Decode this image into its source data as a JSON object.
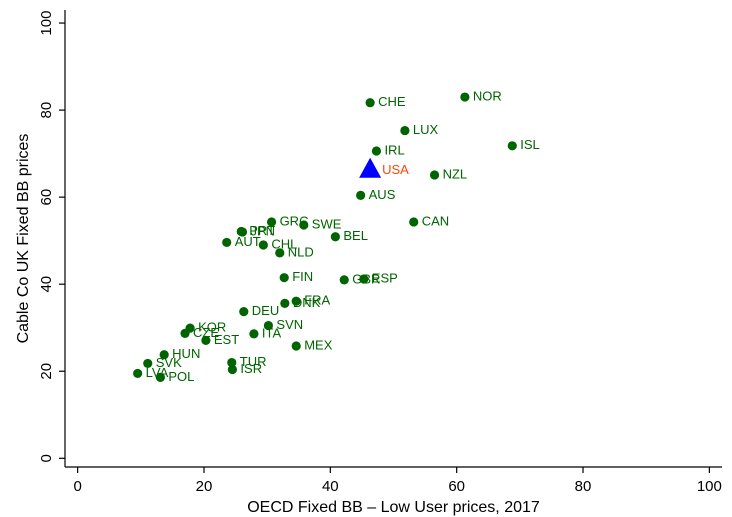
{
  "chart_data": {
    "type": "scatter",
    "xlabel": "OECD Fixed BB – Low User prices, 2017",
    "ylabel": "Cable Co UK Fixed BB prices",
    "xlim": [
      -2,
      102
    ],
    "ylim": [
      -2,
      103
    ],
    "xticks": [
      0,
      20,
      40,
      60,
      80,
      100
    ],
    "yticks": [
      0,
      20,
      40,
      60,
      80,
      100
    ],
    "grid": false,
    "colors": {
      "point": "#006400",
      "highlight_marker": "#0000ff",
      "highlight_label": "#ff4500"
    },
    "highlight": {
      "label": "USA",
      "x": 46.3,
      "y": 66.3
    },
    "points": [
      {
        "label": "NOR",
        "x": 61.3,
        "y": 83.0
      },
      {
        "label": "CHE",
        "x": 46.3,
        "y": 81.7
      },
      {
        "label": "LUX",
        "x": 51.8,
        "y": 75.3
      },
      {
        "label": "ISL",
        "x": 68.8,
        "y": 71.8
      },
      {
        "label": "IRL",
        "x": 47.3,
        "y": 70.6
      },
      {
        "label": "NZL",
        "x": 56.5,
        "y": 65.1
      },
      {
        "label": "AUS",
        "x": 44.8,
        "y": 60.4
      },
      {
        "label": "CAN",
        "x": 53.2,
        "y": 54.3
      },
      {
        "label": "GRC",
        "x": 30.7,
        "y": 54.3
      },
      {
        "label": "SWE",
        "x": 35.8,
        "y": 53.6
      },
      {
        "label": "PRT",
        "x": 25.9,
        "y": 52.1
      },
      {
        "label": "JPN",
        "x": 26.1,
        "y": 52.0
      },
      {
        "label": "BEL",
        "x": 40.8,
        "y": 50.9
      },
      {
        "label": "AUT",
        "x": 23.6,
        "y": 49.6
      },
      {
        "label": "CHL",
        "x": 29.4,
        "y": 49.0
      },
      {
        "label": "NLD",
        "x": 32.0,
        "y": 47.2
      },
      {
        "label": "FIN",
        "x": 32.7,
        "y": 41.5
      },
      {
        "label": "GBR",
        "x": 42.2,
        "y": 41.0
      },
      {
        "label": "ESP",
        "x": 45.3,
        "y": 41.2
      },
      {
        "label": "FRA",
        "x": 34.6,
        "y": 36.1
      },
      {
        "label": "DNK",
        "x": 32.8,
        "y": 35.6
      },
      {
        "label": "DEU",
        "x": 26.3,
        "y": 33.7
      },
      {
        "label": "SVN",
        "x": 30.2,
        "y": 30.5
      },
      {
        "label": "KOR",
        "x": 17.8,
        "y": 29.9
      },
      {
        "label": "CZE",
        "x": 17.0,
        "y": 28.7
      },
      {
        "label": "ITA",
        "x": 27.9,
        "y": 28.6
      },
      {
        "label": "EST",
        "x": 20.3,
        "y": 27.1
      },
      {
        "label": "MEX",
        "x": 34.6,
        "y": 25.8
      },
      {
        "label": "HUN",
        "x": 13.7,
        "y": 23.8
      },
      {
        "label": "TUR",
        "x": 24.4,
        "y": 22.0
      },
      {
        "label": "SVK",
        "x": 11.1,
        "y": 21.8
      },
      {
        "label": "ISR",
        "x": 24.5,
        "y": 20.4
      },
      {
        "label": "LVA",
        "x": 9.5,
        "y": 19.5
      },
      {
        "label": "POL",
        "x": 13.1,
        "y": 18.6
      }
    ]
  }
}
